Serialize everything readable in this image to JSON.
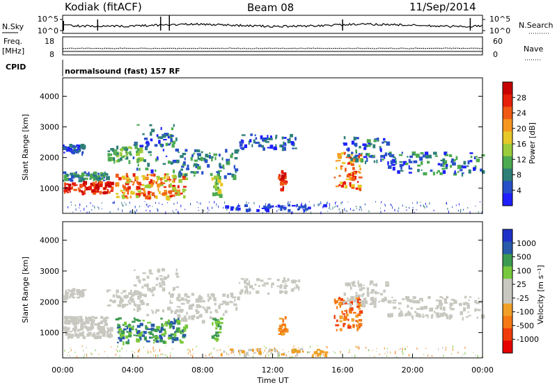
{
  "header": {
    "station": "Kodiak (fitACF)",
    "beam": "Beam 08",
    "date": "11/Sep/2014"
  },
  "top_panels": {
    "nsky_label": "N.Sky",
    "nsky_ticks": [
      "10^5",
      "10^0"
    ],
    "nsearch_label": "N.Search",
    "nsearch_ticks": [
      "10^5",
      "10^0"
    ],
    "freq_label_1": "Freq.",
    "freq_label_2": "[MHz]",
    "freq_ticks": [
      "18",
      "8"
    ],
    "nave_label": "Nave",
    "nave_ticks": [
      "60",
      "0"
    ],
    "cpid_label": "CPID",
    "cpid_text": "normalsound (fast) 157 RF"
  },
  "colors": {
    "power_scale": [
      "#1f1fff",
      "#2850c8",
      "#2d7f78",
      "#4caa50",
      "#9ccc3c",
      "#e6c828",
      "#f5961e",
      "#f05a14",
      "#e61e0a",
      "#c80000"
    ],
    "velocity_scale": [
      "#e60000",
      "#f03c0a",
      "#f57814",
      "#f0a028",
      "#c8c8c0",
      "#c8c8c0",
      "#78c83c",
      "#3c9a50",
      "#285aaa",
      "#1e32c8"
    ]
  },
  "chart_data": [
    {
      "type": "heatmap",
      "name": "power",
      "ylabel": "Slant Range [km]",
      "yticks": [
        "1000",
        "2000",
        "3000",
        "4000"
      ],
      "ylim": [
        180,
        4600
      ],
      "xlim": [
        0,
        24
      ],
      "colorbar_label": "Power [dB]",
      "colorbar_ticks": [
        "4",
        "8",
        "12",
        "16",
        "20",
        "24",
        "28"
      ],
      "clim": [
        0,
        30
      ]
    },
    {
      "type": "heatmap",
      "name": "velocity",
      "ylabel": "Slant Range [km]",
      "yticks": [
        "1000",
        "2000",
        "3000",
        "4000"
      ],
      "ylim": [
        180,
        4600
      ],
      "xlim": [
        0,
        24
      ],
      "colorbar_label": "Velocity [m s⁻¹]",
      "colorbar_ticks": [
        "-1000",
        "-500",
        "-100",
        "-25",
        "25",
        "100",
        "500",
        "1000"
      ],
      "xlabel": "Time UT",
      "xticks": [
        "00:00",
        "04:00",
        "08:00",
        "12:00",
        "16:00",
        "20:00",
        "00:00"
      ]
    }
  ]
}
